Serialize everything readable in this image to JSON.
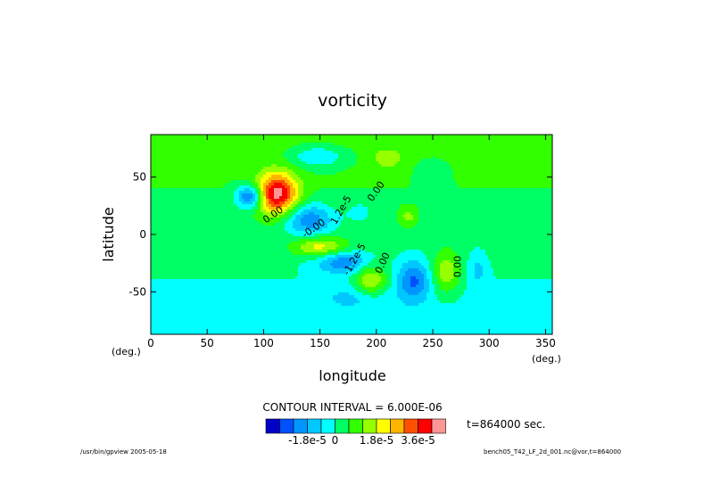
{
  "chart_data": {
    "type": "heatmap",
    "title": "vorticity",
    "xlabel": "longitude",
    "ylabel": "latitude",
    "x_unit": "(deg.)",
    "y_unit": "(deg.)",
    "xlim": [
      0,
      356
    ],
    "ylim": [
      -87,
      87
    ],
    "x_ticks": [
      0,
      50,
      100,
      150,
      200,
      250,
      300,
      350
    ],
    "y_ticks": [
      -50,
      0,
      50
    ],
    "contour_interval_text": "CONTOUR INTERVAL = 6.000E-06",
    "time_text": "t=864000 sec.",
    "colorbar": {
      "colors": [
        "#0000c8",
        "#0050ff",
        "#0096ff",
        "#00c8ff",
        "#00ffff",
        "#00ff64",
        "#32ff00",
        "#96ff00",
        "#ffff00",
        "#ffb400",
        "#ff5000",
        "#ff0000",
        "#ff9696"
      ],
      "labels": [
        {
          "text": "-1.8e-5",
          "boundary": 3
        },
        {
          "text": "0",
          "boundary": 5
        },
        {
          "text": "1.8e-5",
          "boundary": 8
        },
        {
          "text": "3.6e-5",
          "boundary": 11
        }
      ]
    },
    "field": {
      "background_value": 0.5,
      "base_gradient": [
        {
          "lat": 87,
          "value": 1.1
        },
        {
          "lat": -87,
          "value": -1.1
        }
      ],
      "features": [
        {
          "lon": 112,
          "lat": 35,
          "a": 6.6,
          "rlon": 18,
          "rlat": 18
        },
        {
          "lon": 88,
          "lat": 33,
          "a": -4.5,
          "rlon": 12,
          "rlat": 10
        },
        {
          "lon": 140,
          "lat": 13,
          "a": -3.4,
          "rlon": 22,
          "rlat": 14
        },
        {
          "lon": 150,
          "lat": -11,
          "a": 3.2,
          "rlon": 24,
          "rlat": 9
        },
        {
          "lon": 170,
          "lat": -24,
          "a": -3.0,
          "rlon": 24,
          "rlat": 10
        },
        {
          "lon": 195,
          "lat": -40,
          "a": 3.0,
          "rlon": 14,
          "rlat": 14
        },
        {
          "lon": 233,
          "lat": -40,
          "a": -3.2,
          "rlon": 14,
          "rlat": 18
        },
        {
          "lon": 262,
          "lat": -33,
          "a": 2.7,
          "rlon": 12,
          "rlat": 18
        },
        {
          "lon": 290,
          "lat": -30,
          "a": -1.4,
          "rlon": 8,
          "rlat": 16
        },
        {
          "lon": 148,
          "lat": 68,
          "a": -2.2,
          "rlon": 26,
          "rlat": 10
        },
        {
          "lon": 210,
          "lat": 66,
          "a": 1.6,
          "rlon": 12,
          "rlat": 8
        },
        {
          "lon": 228,
          "lat": 15,
          "a": 1.7,
          "rlon": 8,
          "rlat": 8
        },
        {
          "lon": 185,
          "lat": 20,
          "a": -1.1,
          "rlon": 12,
          "rlat": 10
        },
        {
          "lon": 250,
          "lat": 55,
          "a": -1.0,
          "rlon": 14,
          "rlat": 12
        },
        {
          "lon": 180,
          "lat": -55,
          "a": -1.2,
          "rlon": 30,
          "rlat": 10
        }
      ]
    },
    "contour_labels": [
      {
        "text": "0.00",
        "lon": 110,
        "lat": 15,
        "angle": -35
      },
      {
        "text": "-0.00",
        "lon": 146,
        "lat": 3,
        "angle": -35
      },
      {
        "text": "1.2e-5",
        "lon": 171,
        "lat": 20,
        "angle": -60
      },
      {
        "text": "0.00",
        "lon": 202,
        "lat": 36,
        "angle": -55
      },
      {
        "text": "-1.2e-5",
        "lon": 183,
        "lat": -23,
        "angle": -60
      },
      {
        "text": "0.00",
        "lon": 208,
        "lat": -26,
        "angle": -65
      },
      {
        "text": "0.00",
        "lon": 275,
        "lat": -28,
        "angle": -90
      }
    ]
  },
  "footer": {
    "left": "/usr/bin/gpview  2005-05-18",
    "right": "bench05_T42_LF_2d_001.nc@vor,t=864000"
  }
}
